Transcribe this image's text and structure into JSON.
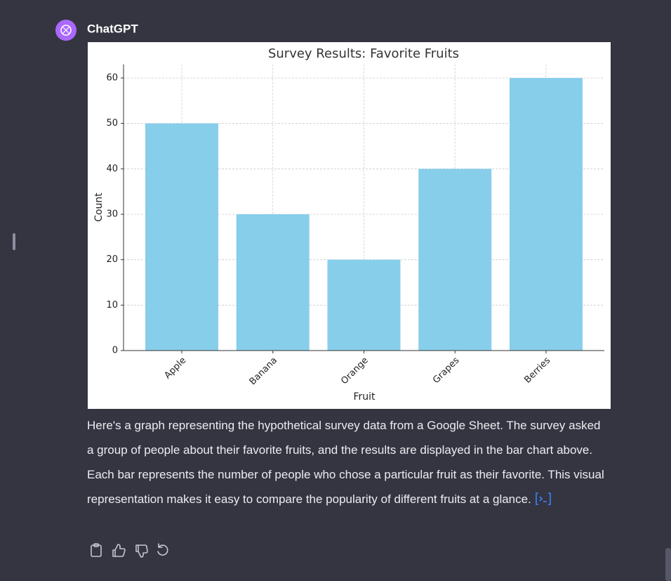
{
  "sender": "ChatGPT",
  "chart_data": {
    "type": "bar",
    "title": "Survey Results: Favorite Fruits",
    "x_label": "Fruit",
    "y_label": "Count",
    "categories": [
      "Apple",
      "Banana",
      "Orange",
      "Grapes",
      "Berries"
    ],
    "values": [
      50,
      30,
      20,
      40,
      60
    ],
    "color": "#87ceeb",
    "ylim": [
      0,
      63
    ],
    "yticks": [
      0,
      10,
      20,
      30,
      40,
      50,
      60
    ],
    "grid": true
  },
  "message": "Here's a graph representing the hypothetical survey data from a Google Sheet. The survey asked a group of people about their favorite fruits, and the results are displayed in the bar chart above. Each bar represents the number of people who chose a particular fruit as their favorite. This visual representation makes it easy to compare the popularity of different fruits at a glance."
}
